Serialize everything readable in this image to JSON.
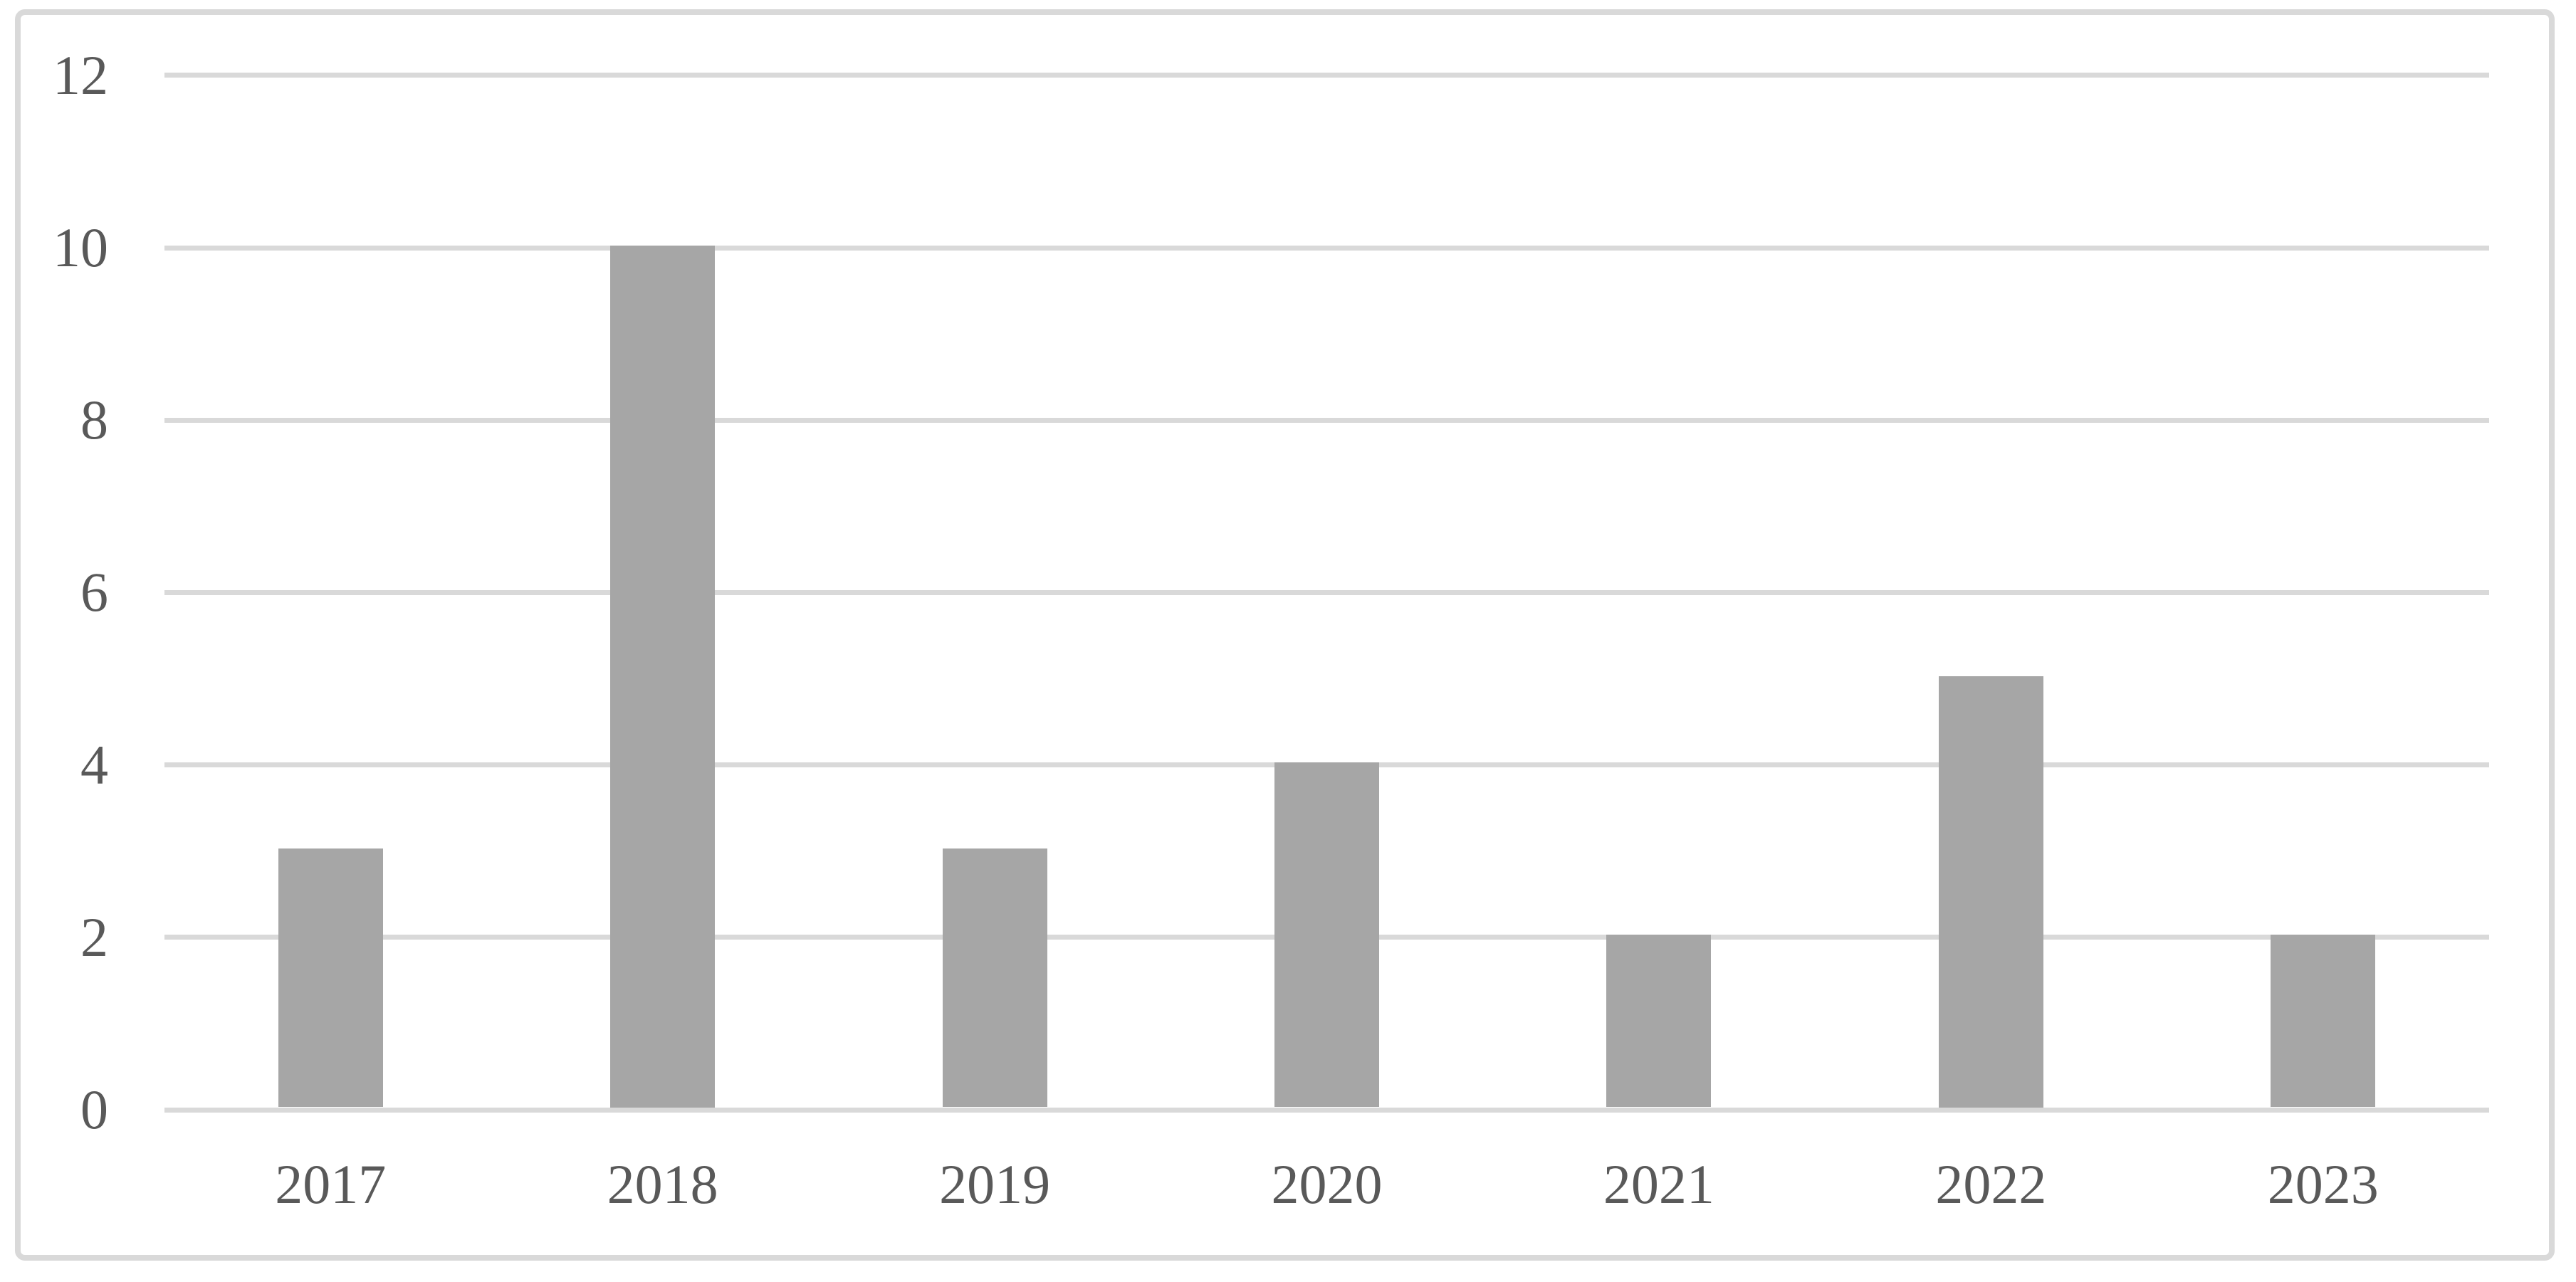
{
  "chart_data": {
    "type": "bar",
    "title": "",
    "xlabel": "",
    "ylabel": "",
    "categories": [
      "2017",
      "2018",
      "2019",
      "2020",
      "2021",
      "2022",
      "2023"
    ],
    "values": [
      3,
      10,
      3,
      4,
      2,
      5,
      2
    ],
    "series_name": "",
    "ylim": [
      0,
      12
    ],
    "yticks": [
      0,
      2,
      4,
      6,
      8,
      10,
      12
    ],
    "grid": true,
    "legend": false,
    "colors": {
      "bar": "#a6a6a6",
      "gridline": "#d9d9d9",
      "frame_border": "#d9d9d9",
      "axis_text": "#595959",
      "background": "#ffffff"
    }
  }
}
